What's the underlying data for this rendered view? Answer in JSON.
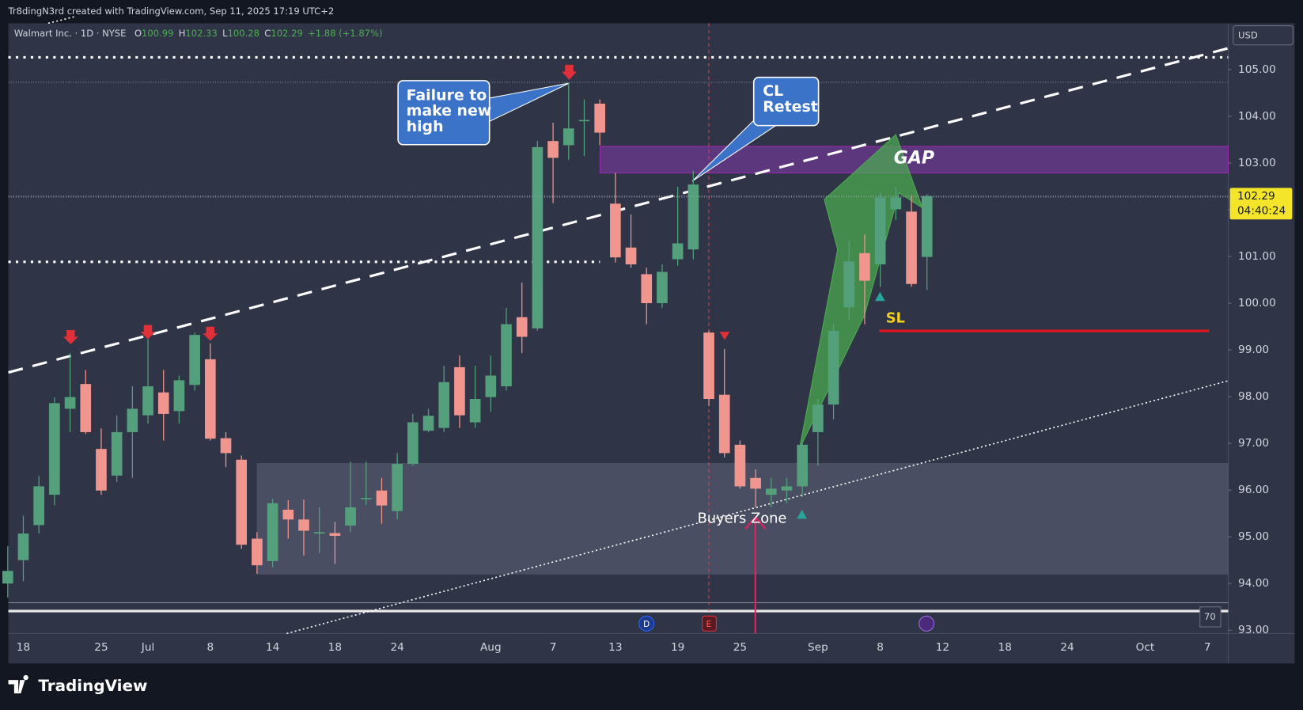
{
  "header": {
    "attribution": "Tr8dingN3rd created with TradingView.com, Sep 11, 2025 17:19 UTC+2",
    "brand": "TradingView",
    "scale_badge": "70"
  },
  "chart_data": {
    "type": "candlestick",
    "title": "Walmart Inc. · 1D · NYSE",
    "ohlc_labels": [
      "O",
      "H",
      "L",
      "C"
    ],
    "change": "+1.88 (+1.87%)",
    "currency": "USD",
    "countdown": "04:40:24",
    "colors": {
      "up": "#55a07c",
      "down": "#f0968e"
    },
    "categories": [
      null,
      "18",
      null,
      null,
      null,
      null,
      "25",
      null,
      null,
      "Jul",
      null,
      null,
      null,
      "8",
      null,
      null,
      null,
      "14",
      null,
      null,
      null,
      "18",
      null,
      null,
      null,
      "24",
      null,
      null,
      null,
      null,
      null,
      "Aug",
      null,
      null,
      null,
      "7",
      null,
      null,
      null,
      "13",
      null,
      null,
      null,
      "19",
      null,
      null,
      null,
      "25",
      null,
      null,
      null,
      null,
      "Sep",
      null,
      null,
      null,
      "8",
      null,
      null,
      null,
      "12",
      null,
      null,
      null,
      "18",
      null,
      null,
      null,
      "24",
      null,
      null,
      null,
      null,
      "Oct",
      null,
      null,
      null,
      "7"
    ],
    "open": [
      94.0,
      94.5,
      95.25,
      95.9,
      97.74,
      98.27,
      96.88,
      96.31,
      97.24,
      97.6,
      98.09,
      97.69,
      98.25,
      98.8,
      97.11,
      96.65,
      94.96,
      94.48,
      95.58,
      95.37,
      95.07,
      95.08,
      95.24,
      95.81,
      95.99,
      95.55,
      96.56,
      97.27,
      97.33,
      98.63,
      97.45,
      97.99,
      98.22,
      99.7,
      99.46,
      103.47,
      103.38,
      103.9,
      104.27,
      102.13,
      101.19,
      100.62,
      100.0,
      100.94,
      101.15,
      99.37,
      98.04,
      96.97,
      96.26,
      95.9,
      95.99,
      96.08,
      97.24,
      97.83,
      99.91,
      101.07,
      100.83,
      102.01,
      101.96,
      100.99,
      null,
      null,
      null,
      null,
      null,
      null,
      null,
      null,
      null,
      null,
      null,
      null,
      null,
      null,
      null,
      null,
      null,
      null
    ],
    "high": [
      94.8,
      95.45,
      96.3,
      97.98,
      98.93,
      98.57,
      97.32,
      97.6,
      98.22,
      99.23,
      98.57,
      98.45,
      99.37,
      99.14,
      97.24,
      96.74,
      95.1,
      95.81,
      95.78,
      95.8,
      95.63,
      95.32,
      96.61,
      96.61,
      96.26,
      96.79,
      97.63,
      97.74,
      98.66,
      98.88,
      98.66,
      98.88,
      99.9,
      100.44,
      103.47,
      103.86,
      104.72,
      104.36,
      104.36,
      102.79,
      101.9,
      100.76,
      100.83,
      102.49,
      102.84,
      99.41,
      99.02,
      97.06,
      96.44,
      96.26,
      96.26,
      97.06,
      97.95,
      99.55,
      101.33,
      101.47,
      102.37,
      102.49,
      102.31,
      102.33,
      null,
      null,
      null,
      null,
      null,
      null,
      null,
      null,
      null,
      null,
      null,
      null,
      null,
      null,
      null,
      null,
      null,
      null
    ],
    "low": [
      93.7,
      94.05,
      95.07,
      95.67,
      97.24,
      97.2,
      95.9,
      96.17,
      96.26,
      97.42,
      97.06,
      97.42,
      98.13,
      97.06,
      96.49,
      94.74,
      94.21,
      94.35,
      94.96,
      94.6,
      94.65,
      94.42,
      95.1,
      95.68,
      95.28,
      95.37,
      96.52,
      97.24,
      97.24,
      97.33,
      97.33,
      97.68,
      98.13,
      98.93,
      99.41,
      102.14,
      103.07,
      103.15,
      103.38,
      100.87,
      100.76,
      99.55,
      99.9,
      100.8,
      100.94,
      97.8,
      96.7,
      96.03,
      95.63,
      95.63,
      95.72,
      95.85,
      96.52,
      97.51,
      99.64,
      99.55,
      100.35,
      101.78,
      100.35,
      100.28,
      null,
      null,
      null,
      null,
      null,
      null,
      null,
      null,
      null,
      null,
      null,
      null,
      null,
      null,
      null,
      null,
      null,
      null
    ],
    "close": [
      94.27,
      95.07,
      96.08,
      97.86,
      97.99,
      97.24,
      95.99,
      97.24,
      97.74,
      98.22,
      97.63,
      98.35,
      99.32,
      97.1,
      96.79,
      94.83,
      94.39,
      95.72,
      95.37,
      95.13,
      95.1,
      95.02,
      95.63,
      95.83,
      95.67,
      96.56,
      97.45,
      97.59,
      98.31,
      97.6,
      97.95,
      98.45,
      99.55,
      99.28,
      103.34,
      103.11,
      103.74,
      103.92,
      103.65,
      100.98,
      100.83,
      100.0,
      100.67,
      101.28,
      102.54,
      97.95,
      96.79,
      96.08,
      96.03,
      96.03,
      96.08,
      96.97,
      97.83,
      99.41,
      100.89,
      100.48,
      102.26,
      102.26,
      100.41,
      102.29,
      null,
      null,
      null,
      null,
      null,
      null,
      null,
      null,
      null,
      null,
      null,
      null,
      null,
      null,
      null,
      null,
      null,
      null
    ],
    "ylim": [
      92.93,
      105.99
    ],
    "yticks": [
      {
        "value": 93,
        "label": "93.00"
      },
      {
        "value": 94,
        "label": "94.00"
      },
      {
        "value": 95,
        "label": "95.00"
      },
      {
        "value": 96,
        "label": "96.00"
      },
      {
        "value": 97,
        "label": "97.00"
      },
      {
        "value": 98,
        "label": "98.00"
      },
      {
        "value": 99,
        "label": "99.00"
      },
      {
        "value": 100,
        "label": "100.00"
      },
      {
        "value": 101,
        "label": "101.00"
      },
      {
        "value": 102,
        "label": "102.00"
      },
      {
        "value": 103,
        "label": "103.00"
      },
      {
        "value": 104,
        "label": "104.00"
      },
      {
        "value": 105,
        "label": "105.00"
      }
    ],
    "grid": false,
    "annotations": {
      "failure": [
        "Failure to",
        "make new",
        "high"
      ],
      "retest": [
        "CL",
        "Retest"
      ],
      "gap": "GAP",
      "stop_loss": "SL",
      "buyers_zone": "Buyers Zone"
    }
  }
}
